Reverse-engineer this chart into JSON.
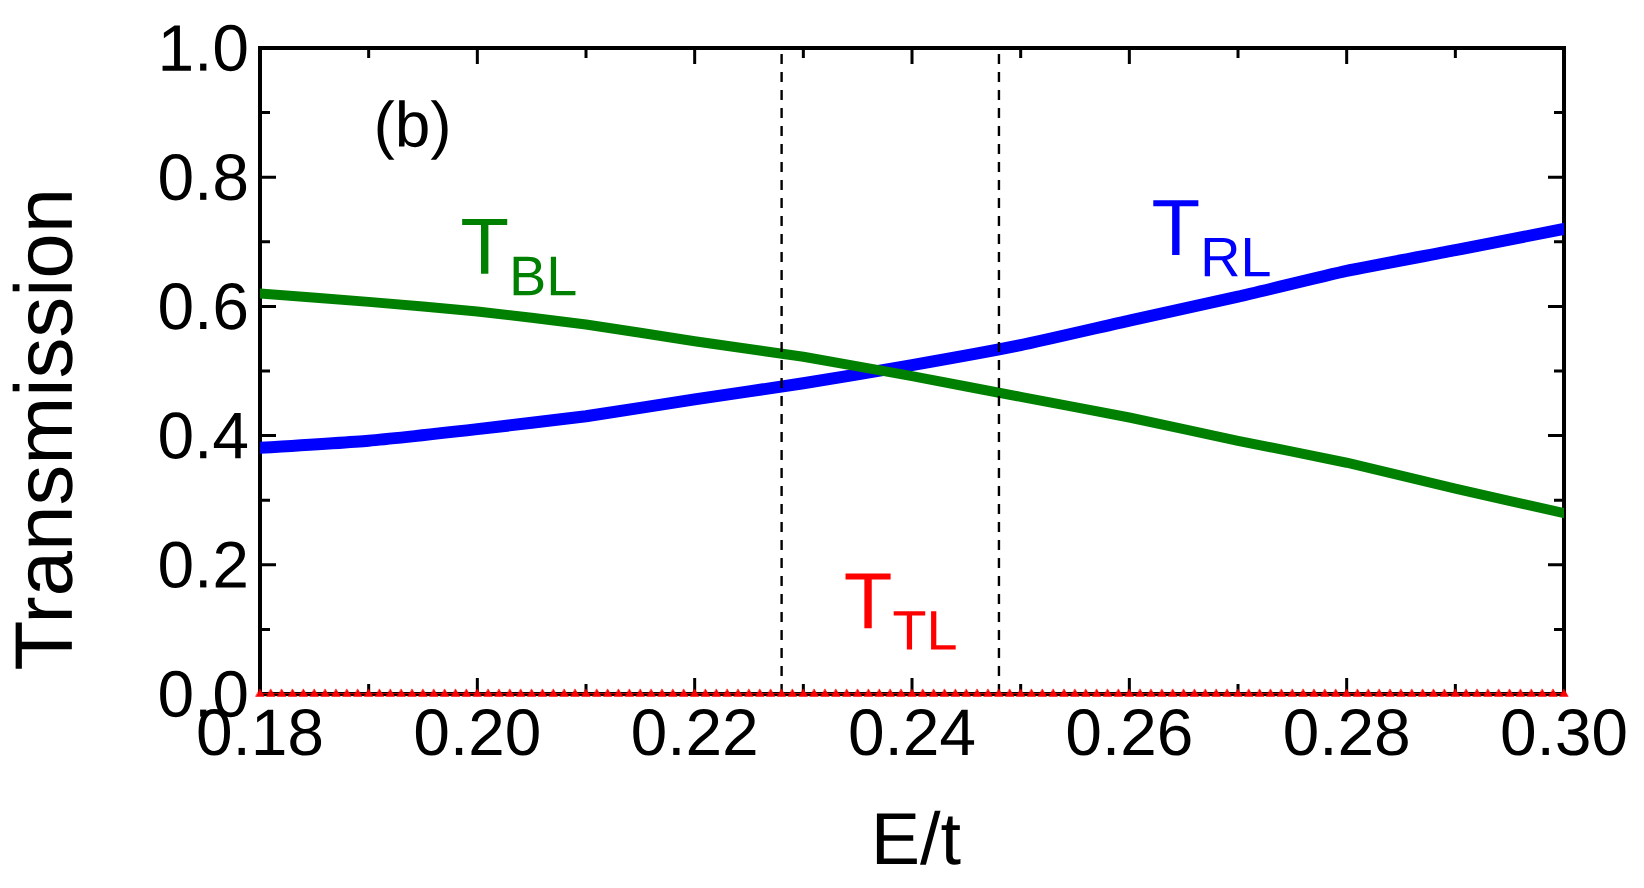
{
  "chart_data": {
    "type": "line",
    "xlabel": "E/t",
    "ylabel": "Transmission",
    "annotations": [
      "(b)"
    ],
    "x": [
      0.18,
      0.19,
      0.2,
      0.21,
      0.22,
      0.23,
      0.24,
      0.25,
      0.26,
      0.27,
      0.28,
      0.29,
      0.3
    ],
    "series": [
      {
        "name": "T$_{RL}$",
        "color": "#0000ff",
        "values": [
          0.381,
          0.392,
          0.41,
          0.43,
          0.456,
          0.481,
          0.509,
          0.54,
          0.578,
          0.615,
          0.655,
          0.687,
          0.72
        ]
      },
      {
        "name": "T$_{BL}$",
        "color": "#008000",
        "values": [
          0.62,
          0.607,
          0.592,
          0.572,
          0.546,
          0.522,
          0.492,
          0.46,
          0.428,
          0.392,
          0.358,
          0.318,
          0.28
        ]
      },
      {
        "name": "T$_{TL}$",
        "color": "#ff0000",
        "marker": "triangle",
        "x": [
          0.18,
          0.181,
          0.182,
          0.183,
          0.184,
          0.185,
          0.186,
          0.187,
          0.188,
          0.189,
          0.19,
          0.191,
          0.192,
          0.193,
          0.194,
          0.195,
          0.196,
          0.197,
          0.198,
          0.199,
          0.2,
          0.201,
          0.202,
          0.203,
          0.204,
          0.205,
          0.206,
          0.207,
          0.208,
          0.209,
          0.21,
          0.211,
          0.212,
          0.213,
          0.214,
          0.215,
          0.216,
          0.217,
          0.218,
          0.219,
          0.22,
          0.221,
          0.222,
          0.223,
          0.224,
          0.225,
          0.226,
          0.227,
          0.228,
          0.229,
          0.23,
          0.231,
          0.232,
          0.233,
          0.234,
          0.235,
          0.236,
          0.237,
          0.238,
          0.239,
          0.24,
          0.241,
          0.242,
          0.243,
          0.244,
          0.245,
          0.246,
          0.247,
          0.248,
          0.249,
          0.25,
          0.251,
          0.252,
          0.253,
          0.254,
          0.255,
          0.256,
          0.257,
          0.258,
          0.259,
          0.26,
          0.261,
          0.262,
          0.263,
          0.264,
          0.265,
          0.266,
          0.267,
          0.268,
          0.269,
          0.27,
          0.271,
          0.272,
          0.273,
          0.274,
          0.275,
          0.276,
          0.277,
          0.278,
          0.279,
          0.28,
          0.281,
          0.282,
          0.283,
          0.284,
          0.285,
          0.286,
          0.287,
          0.288,
          0.289,
          0.29,
          0.291,
          0.292,
          0.293,
          0.294,
          0.295,
          0.296,
          0.297,
          0.298,
          0.299,
          0.3
        ],
        "values": [
          0,
          0,
          0,
          0,
          0,
          0,
          0,
          0,
          0,
          0,
          0,
          0,
          0,
          0,
          0,
          0,
          0,
          0,
          0,
          0,
          0,
          0,
          0,
          0,
          0,
          0,
          0,
          0,
          0,
          0,
          0,
          0,
          0,
          0,
          0,
          0,
          0,
          0,
          0,
          0,
          0,
          0,
          0,
          0,
          0,
          0,
          0,
          0,
          0,
          0,
          0,
          0,
          0,
          0,
          0,
          0,
          0,
          0,
          0,
          0,
          0,
          0,
          0,
          0,
          0,
          0,
          0,
          0,
          0,
          0,
          0,
          0,
          0,
          0,
          0,
          0,
          0,
          0,
          0,
          0,
          0,
          0,
          0,
          0,
          0,
          0,
          0,
          0,
          0,
          0,
          0,
          0,
          0,
          0,
          0,
          0,
          0,
          0,
          0,
          0,
          0,
          0,
          0,
          0,
          0,
          0,
          0,
          0,
          0,
          0,
          0,
          0,
          0,
          0,
          0,
          0,
          0,
          0,
          0,
          0,
          0
        ]
      }
    ],
    "xlim": [
      0.18,
      0.3
    ],
    "xticks": [
      {
        "value": 0.18,
        "label": "0.18"
      },
      {
        "value": 0.2,
        "label": "0.20"
      },
      {
        "value": 0.22,
        "label": "0.22"
      },
      {
        "value": 0.24,
        "label": "0.24"
      },
      {
        "value": 0.26,
        "label": "0.26"
      },
      {
        "value": 0.28,
        "label": "0.28"
      },
      {
        "value": 0.3,
        "label": "0.30"
      }
    ],
    "ylim": [
      0,
      1
    ],
    "yticks": [
      {
        "value": 0,
        "label": "0.0"
      },
      {
        "value": 0.2,
        "label": "0.2"
      },
      {
        "value": 0.4,
        "label": "0.4"
      },
      {
        "value": 0.6,
        "label": "0.6"
      },
      {
        "value": 0.8,
        "label": "0.8"
      },
      {
        "value": 1,
        "label": "1.0"
      }
    ],
    "ref_lines": [
      {
        "axis": "x",
        "value": 0.228,
        "color": "#000000",
        "line_style": "dashed"
      },
      {
        "axis": "x",
        "value": 0.248,
        "color": "#000000",
        "line_style": "dashed"
      }
    ]
  }
}
